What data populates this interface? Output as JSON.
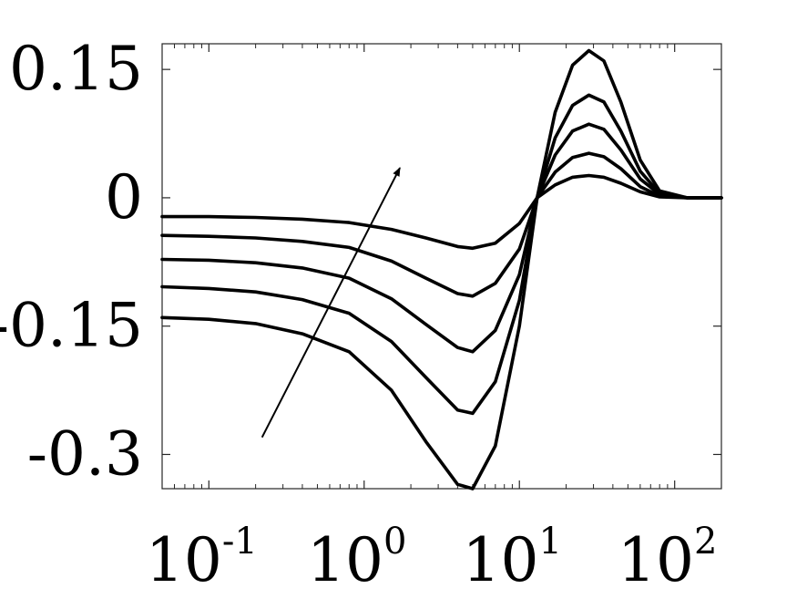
{
  "chart_data": {
    "type": "line",
    "title": "",
    "xlabel": "",
    "ylabel": "",
    "xscale": "log",
    "xlim": [
      0.05,
      200
    ],
    "ylim": [
      -0.34,
      0.18
    ],
    "grid": false,
    "legend": "none",
    "line_color": "#000000",
    "x_ticks": [
      {
        "value": 0.1,
        "base": "10",
        "exp": "-1"
      },
      {
        "value": 1,
        "base": "10",
        "exp": "0"
      },
      {
        "value": 10,
        "base": "10",
        "exp": "1"
      },
      {
        "value": 100,
        "base": "10",
        "exp": "2"
      }
    ],
    "y_ticks": [
      {
        "value": 0.15,
        "label": "0.15"
      },
      {
        "value": 0,
        "label": "0"
      },
      {
        "value": -0.15,
        "label": "-0.15"
      },
      {
        "value": -0.3,
        "label": "-0.3"
      }
    ],
    "x": [
      0.05,
      0.1,
      0.2,
      0.4,
      0.8,
      1.5,
      2.5,
      4,
      5,
      7,
      10,
      13,
      17,
      22,
      28,
      35,
      45,
      60,
      80,
      120,
      200
    ],
    "series": [
      {
        "values": [
          -0.022,
          -0.022,
          -0.023,
          -0.025,
          -0.029,
          -0.037,
          -0.047,
          -0.057,
          -0.059,
          -0.053,
          -0.03,
          0.0,
          0.015,
          0.024,
          0.026,
          0.024,
          0.017,
          0.007,
          0.001,
          0.0,
          0.0
        ]
      },
      {
        "values": [
          -0.044,
          -0.045,
          -0.047,
          -0.051,
          -0.058,
          -0.074,
          -0.094,
          -0.112,
          -0.115,
          -0.1,
          -0.06,
          0.0,
          0.03,
          0.047,
          0.052,
          0.048,
          0.034,
          0.013,
          0.002,
          0.0,
          0.0
        ]
      },
      {
        "values": [
          -0.072,
          -0.073,
          -0.076,
          -0.082,
          -0.094,
          -0.118,
          -0.148,
          -0.175,
          -0.18,
          -0.155,
          -0.09,
          0.0,
          0.05,
          0.078,
          0.086,
          0.08,
          0.056,
          0.022,
          0.004,
          0.0,
          0.0
        ]
      },
      {
        "values": [
          -0.104,
          -0.106,
          -0.11,
          -0.119,
          -0.135,
          -0.168,
          -0.21,
          -0.248,
          -0.252,
          -0.215,
          -0.12,
          0.0,
          0.07,
          0.108,
          0.12,
          0.112,
          0.078,
          0.031,
          0.005,
          0.0,
          0.0
        ]
      },
      {
        "values": [
          -0.14,
          -0.142,
          -0.147,
          -0.159,
          -0.18,
          -0.225,
          -0.285,
          -0.335,
          -0.34,
          -0.29,
          -0.15,
          0.0,
          0.1,
          0.155,
          0.172,
          0.16,
          0.112,
          0.044,
          0.008,
          0.0,
          0.0
        ]
      }
    ],
    "annotations": [
      {
        "type": "arrow",
        "from": [
          0.22,
          -0.28
        ],
        "to": [
          1.7,
          0.035
        ]
      }
    ]
  }
}
